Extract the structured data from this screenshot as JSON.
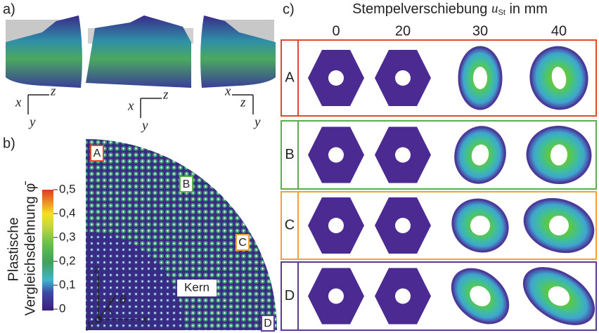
{
  "panel_a": {
    "label": "a)",
    "triads": [
      [
        "x",
        "z",
        "y"
      ],
      [
        "x",
        "z",
        "y"
      ],
      [
        "z",
        "x",
        "y"
      ]
    ]
  },
  "panel_b": {
    "label": "b)",
    "markers": [
      "A",
      "B",
      "C",
      "D"
    ],
    "core": "Kern",
    "axes": {
      "z": "z",
      "r": "r",
      "theta": "θ",
      "y": "y",
      "x": "x"
    },
    "colorbar": {
      "title_line1": "Plastische",
      "title_line2": "Vergleichsdehnung φ̄",
      "ticks": [
        {
          "value": 0.5,
          "label": "0,5"
        },
        {
          "value": 0.4,
          "label": "0,4"
        },
        {
          "value": 0.3,
          "label": "0,3"
        },
        {
          "value": 0.2,
          "label": "0,2"
        },
        {
          "value": 0.1,
          "label": "0,1"
        },
        0
      ]
    }
  },
  "panel_c": {
    "label": "c)",
    "title": "Stempelverschiebung",
    "symbol": "u",
    "subscript": "St",
    "unit": "in mm",
    "columns": [
      0,
      20,
      30,
      40
    ],
    "rows": [
      "A",
      "B",
      "C",
      "D"
    ]
  }
}
